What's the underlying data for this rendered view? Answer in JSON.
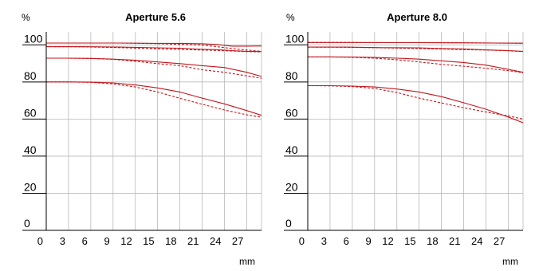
{
  "chart_data": [
    {
      "type": "line",
      "title": "Aperture 5.6",
      "ylabel": "%",
      "xlabel": "mm",
      "xlim": [
        0,
        29
      ],
      "ylim": [
        0,
        107
      ],
      "xticks": [
        "0",
        "3",
        "6",
        "9",
        "12",
        "15",
        "18",
        "21",
        "24",
        "27"
      ],
      "yticks": [
        "0",
        "20",
        "40",
        "60",
        "80",
        "100"
      ],
      "grid": true,
      "series": [
        {
          "style": "solid",
          "x": [
            0,
            5,
            10,
            15,
            18,
            21,
            23,
            25,
            27,
            29
          ],
          "y": [
            101.0,
            101.0,
            101.0,
            100.8,
            100.8,
            100.6,
            100.2,
            99.3,
            99.3,
            99.4
          ]
        },
        {
          "style": "dashed",
          "x": [
            0,
            5,
            10,
            15,
            18,
            21,
            23,
            25,
            27,
            29
          ],
          "y": [
            101.0,
            101.0,
            101.0,
            100.7,
            100.3,
            99.9,
            99.0,
            98.0,
            97.2,
            96.5
          ]
        },
        {
          "style": "solid",
          "x": [
            0,
            5,
            10,
            15,
            18,
            21,
            23,
            25,
            27,
            29
          ],
          "y": [
            99.0,
            99.0,
            98.8,
            98.4,
            98.2,
            97.6,
            97.4,
            96.9,
            96.5,
            96.4
          ]
        },
        {
          "style": "dashed",
          "x": [
            0,
            5,
            10,
            15,
            18,
            21,
            23,
            25,
            27,
            29
          ],
          "y": [
            99.0,
            98.9,
            98.5,
            97.9,
            97.6,
            97.2,
            97.0,
            96.7,
            96.4,
            96.2
          ]
        },
        {
          "style": "solid",
          "x": [
            0,
            3,
            6,
            9,
            12,
            15,
            18,
            21,
            24,
            27,
            29
          ],
          "y": [
            92.8,
            92.8,
            92.7,
            92.3,
            91.7,
            90.8,
            89.9,
            88.8,
            87.8,
            85.2,
            83.0
          ]
        },
        {
          "style": "dashed",
          "x": [
            0,
            3,
            6,
            9,
            12,
            15,
            18,
            21,
            24,
            27,
            29
          ],
          "y": [
            92.8,
            92.8,
            92.7,
            92.2,
            91.2,
            89.9,
            88.8,
            86.6,
            85.2,
            83.3,
            82.0
          ]
        },
        {
          "style": "solid",
          "x": [
            0,
            3,
            6,
            9,
            12,
            15,
            18,
            21,
            24,
            27,
            29
          ],
          "y": [
            80.0,
            80.0,
            79.9,
            79.5,
            78.4,
            76.8,
            74.6,
            71.3,
            68.2,
            64.6,
            62.0
          ]
        },
        {
          "style": "dashed",
          "x": [
            0,
            3,
            6,
            9,
            12,
            15,
            18,
            21,
            24,
            27,
            29
          ],
          "y": [
            80.0,
            80.0,
            79.8,
            79.0,
            77.3,
            74.6,
            71.2,
            68.0,
            64.9,
            62.3,
            61.0
          ]
        }
      ]
    },
    {
      "type": "line",
      "title": "Aperture 8.0",
      "ylabel": "%",
      "xlabel": "mm",
      "xlim": [
        0,
        29
      ],
      "ylim": [
        0,
        107
      ],
      "xticks": [
        "0",
        "3",
        "6",
        "9",
        "12",
        "15",
        "18",
        "21",
        "24",
        "27"
      ],
      "yticks": [
        "0",
        "20",
        "40",
        "60",
        "80",
        "100"
      ],
      "grid": true,
      "series": [
        {
          "style": "solid",
          "x": [
            0,
            5,
            10,
            15,
            20,
            25,
            29
          ],
          "y": [
            101.3,
            101.3,
            101.2,
            101.2,
            101.1,
            101.0,
            100.9
          ]
        },
        {
          "style": "dashed",
          "x": [
            0,
            5,
            10,
            15,
            20,
            25,
            29
          ],
          "y": [
            101.3,
            101.3,
            101.2,
            101.2,
            101.1,
            101.0,
            100.9
          ]
        },
        {
          "style": "solid",
          "x": [
            0,
            5,
            10,
            15,
            18,
            21,
            24,
            27,
            29
          ],
          "y": [
            98.8,
            98.8,
            98.5,
            98.4,
            98.0,
            97.8,
            97.3,
            96.9,
            96.5
          ]
        },
        {
          "style": "dashed",
          "x": [
            0,
            5,
            10,
            15,
            18,
            21,
            24,
            27,
            29
          ],
          "y": [
            98.8,
            98.7,
            98.4,
            98.0,
            97.8,
            97.4,
            97.2,
            96.8,
            96.4
          ]
        },
        {
          "style": "solid",
          "x": [
            0,
            3,
            6,
            9,
            12,
            15,
            18,
            21,
            24,
            27,
            29
          ],
          "y": [
            93.5,
            93.5,
            93.4,
            93.2,
            92.8,
            92.3,
            91.4,
            90.5,
            89.1,
            86.8,
            85.2
          ]
        },
        {
          "style": "dashed",
          "x": [
            0,
            3,
            6,
            9,
            12,
            15,
            18,
            21,
            24,
            27,
            29
          ],
          "y": [
            93.5,
            93.5,
            93.3,
            92.8,
            92.0,
            90.8,
            89.5,
            88.5,
            87.4,
            86.1,
            85.0
          ]
        },
        {
          "style": "solid",
          "x": [
            0,
            3,
            6,
            9,
            12,
            15,
            18,
            21,
            24,
            27,
            29
          ],
          "y": [
            78.0,
            78.0,
            77.8,
            77.3,
            76.2,
            74.6,
            72.1,
            68.8,
            65.3,
            61.1,
            58.0
          ]
        },
        {
          "style": "dashed",
          "x": [
            0,
            3,
            6,
            9,
            12,
            15,
            18,
            21,
            24,
            27,
            29
          ],
          "y": [
            78.0,
            77.9,
            77.5,
            76.5,
            74.3,
            71.3,
            68.7,
            66.1,
            63.8,
            61.7,
            60.0
          ]
        }
      ]
    }
  ]
}
